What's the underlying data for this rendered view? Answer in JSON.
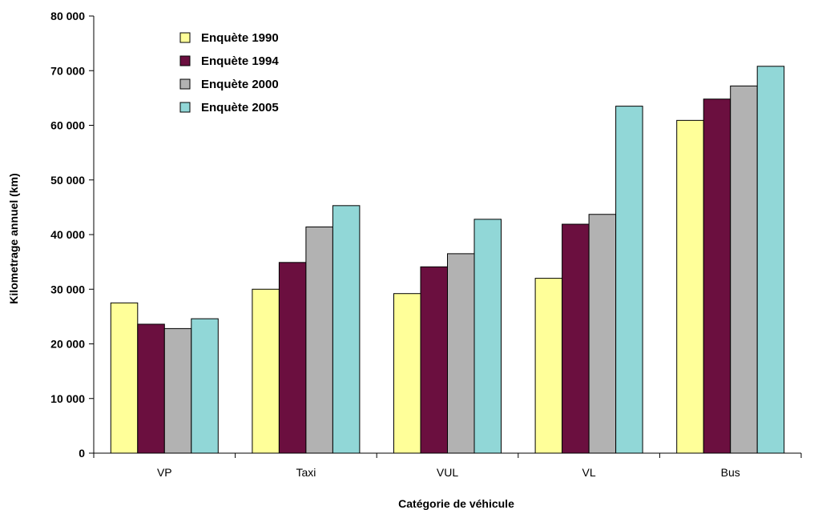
{
  "chart_data": {
    "type": "bar",
    "categories": [
      "VP",
      "Taxi",
      "VUL",
      "VL",
      "Bus"
    ],
    "series": [
      {
        "name": "Enquète 1990",
        "color": "#ffff99",
        "values": [
          27500,
          30000,
          29200,
          32000,
          60900
        ]
      },
      {
        "name": "Enquète 1994",
        "color": "#6b0f3f",
        "values": [
          23600,
          34900,
          34100,
          41900,
          64800
        ]
      },
      {
        "name": "Enquète 2000",
        "color": "#b2b2b2",
        "values": [
          22800,
          41400,
          36500,
          43700,
          67200
        ]
      },
      {
        "name": "Enquète 2005",
        "color": "#91d7d7",
        "values": [
          24600,
          45300,
          42800,
          63500,
          70800
        ]
      }
    ],
    "xlabel": "Catégorie de véhicule",
    "ylabel": "Kilometrage annuel (km)",
    "ylim": [
      0,
      80000
    ],
    "yticks": [
      0,
      10000,
      20000,
      30000,
      40000,
      50000,
      60000,
      70000,
      80000
    ],
    "ytick_labels": [
      "0",
      "10 000",
      "20 000",
      "30 000",
      "40 000",
      "50 000",
      "60 000",
      "70 000",
      "80 000"
    ],
    "grid": false,
    "legend_position": "top-left"
  }
}
